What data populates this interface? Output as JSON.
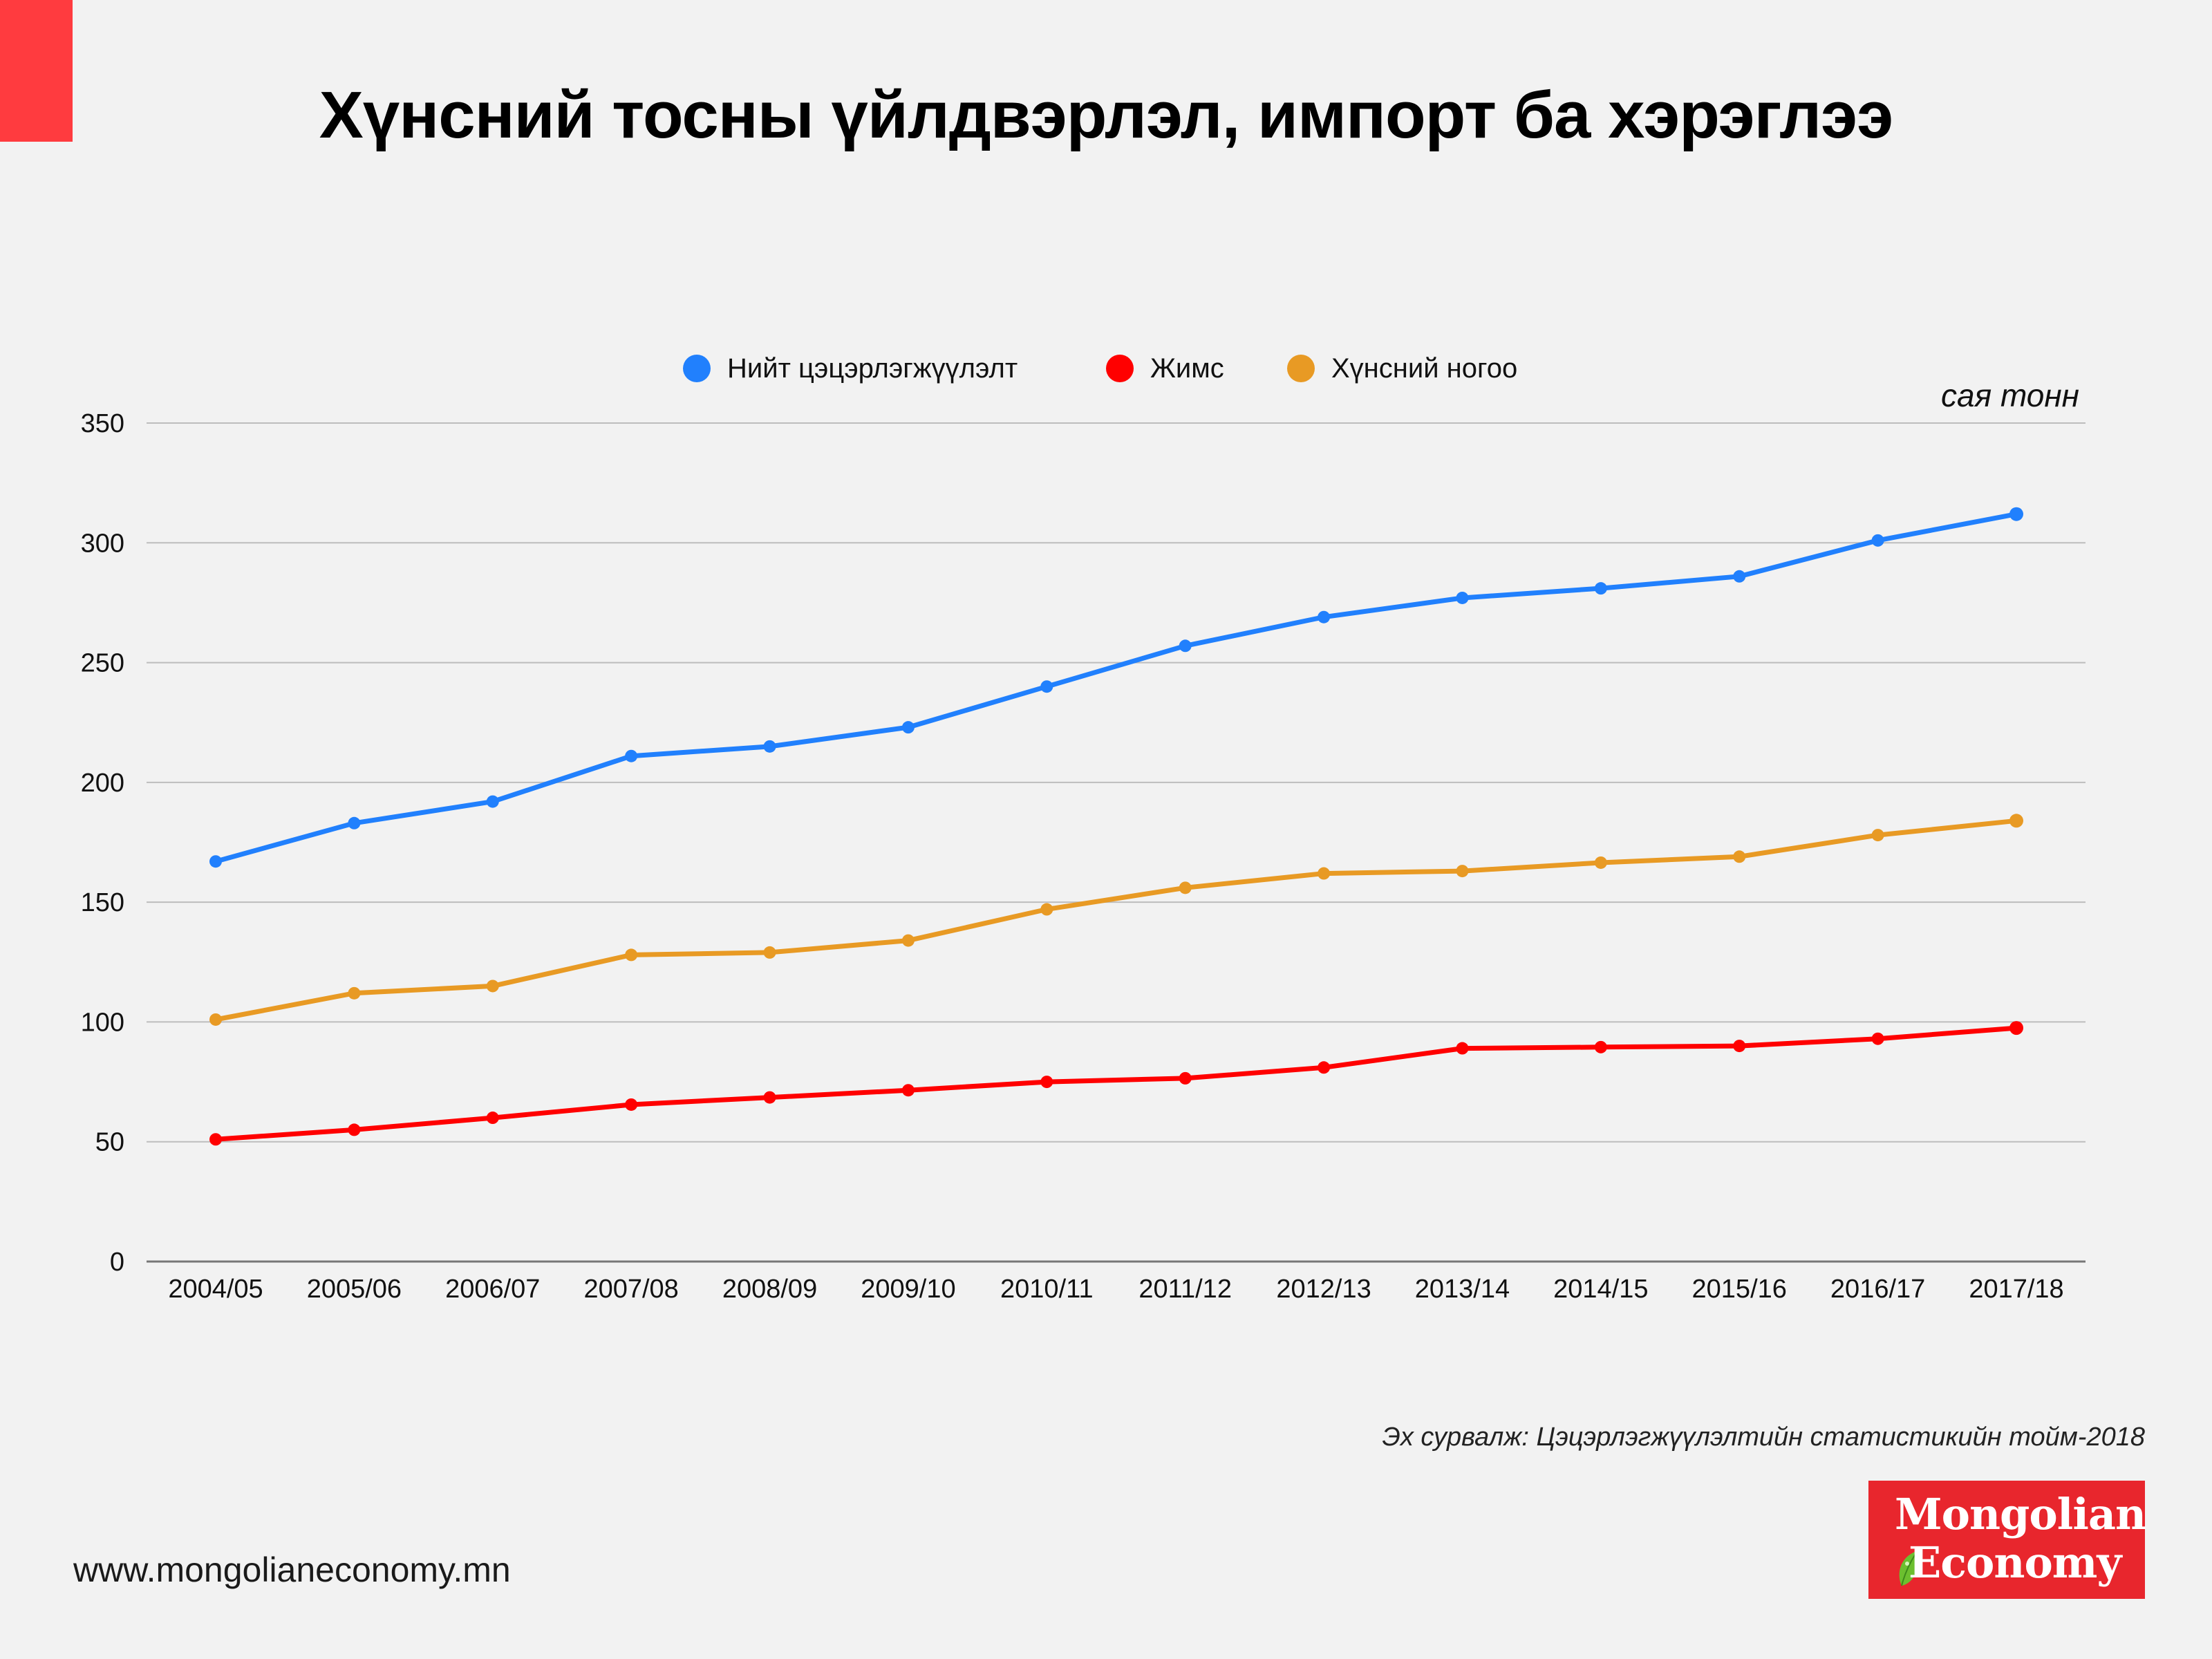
{
  "header": {
    "title": "Хүнсний тосны үйлдвэрлэл, импорт ба хэрэглээ"
  },
  "chart_data": {
    "type": "line",
    "title": "Хүнсний тосны үйлдвэрлэл, импорт ба хэрэглээ",
    "xlabel": "",
    "ylabel": "сая тонн",
    "unit_label": "сая тонн",
    "ylim": [
      0,
      350
    ],
    "yticks": [
      0,
      50,
      100,
      150,
      200,
      250,
      300,
      350
    ],
    "grid": true,
    "legend_position": "top-center",
    "categories": [
      "2004/05",
      "2005/06",
      "2006/07",
      "2007/08",
      "2008/09",
      "2009/10",
      "2010/11",
      "2011/12",
      "2012/13",
      "2013/14",
      "2014/15",
      "2015/16",
      "2016/17",
      "2017/18"
    ],
    "series": [
      {
        "name": "Нийт цэцэрлэгжүүлэлт",
        "color": "#2180fd",
        "values": [
          167,
          183,
          192,
          211,
          215,
          223,
          240,
          257,
          269,
          277,
          281,
          286,
          301,
          312
        ]
      },
      {
        "name": "Жимс",
        "color": "#ff0000",
        "values": [
          51,
          55,
          60,
          65.5,
          68.5,
          71.5,
          75,
          76.5,
          81,
          89,
          89.5,
          90,
          93,
          97.5
        ]
      },
      {
        "name": "Хүнсний ногоо",
        "color": "#e89a24",
        "values": [
          101,
          112,
          115,
          128,
          129,
          134,
          147,
          156,
          162,
          163,
          166.5,
          169,
          178,
          184
        ]
      }
    ]
  },
  "source": "Эх сурвалж: Цэцэрлэгжүүлэлтийн статистикийн тойм-2018",
  "footer": {
    "url": "www.mongolianeconomy.mn",
    "logo_line1": "Mongolian",
    "logo_line2": "Economy",
    "logo_color": "#e8262d",
    "logo_icon": "leaf-icon"
  },
  "accent_color": "#ff3b3f"
}
